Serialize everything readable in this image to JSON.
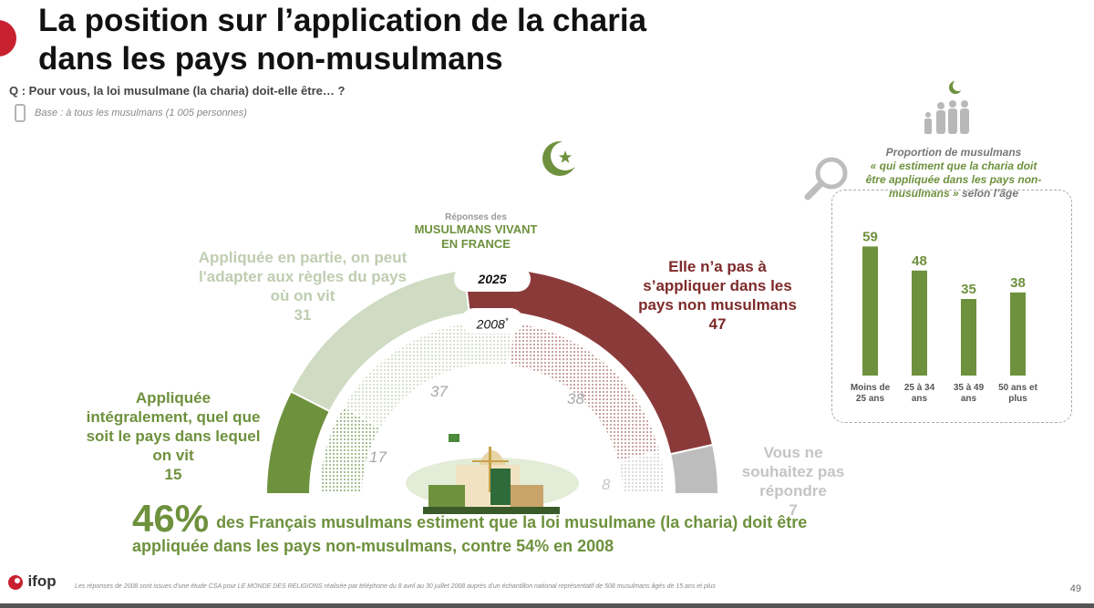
{
  "title_line1": "La position sur l’application de la charia",
  "title_line2": "dans les pays non-musulmans",
  "question": "Q : Pour vous, la loi musulmane (la charia) doit-elle être… ?",
  "base": "Base : à tous les musulmans (1 005 personnes)",
  "center": {
    "subtitle": "Réponses des",
    "title_line1": "MUSULMANS VIVANT",
    "title_line2": "EN FRANCE",
    "year_2025": "2025",
    "year_2008": "2008",
    "year_2008_mark": "*"
  },
  "labels": {
    "integral": [
      "Appliquée",
      "intégralement, quel que",
      "soit le pays dans lequel",
      "on vit"
    ],
    "partial": [
      "Appliquée en partie, on peut",
      "l'adapter aux règles du pays",
      "où on vit"
    ],
    "not_apply": [
      "Elle n’a pas à",
      "s’appliquer dans les",
      "pays non musulmans"
    ],
    "no_answer": [
      "Vous ne",
      "souhaitez pas",
      "répondre"
    ]
  },
  "headline": {
    "big": "46%",
    "text1": "des Français musulmans estiment que la loi musulmane (la charia) doit être",
    "text2": "appliquée dans les pays non-musulmans, contre 54% en 2008"
  },
  "footnote": "Les réponses de 2008 sont issues d’une étude CSA pour LE MONDE DES RELIGIONS réalisée par téléphone du 8 avril au 30 juillet 2008 auprès d’un échantillon national représentatif de 508 musulmans âgés de 15 ans et plus",
  "page_number": "49",
  "logo": "ifop",
  "inset": {
    "title_line1": "Proportion de musulmans",
    "title_em1": "« qui estiment que la charia doit",
    "title_em2": "être appliquée dans les pays non-",
    "title_em3": "musulmans »",
    "title_tail": " selon l’âge"
  },
  "colors": {
    "green": "#6e913d",
    "light_green": "#cfdbc2",
    "dark_red": "#8b3a3a",
    "grey": "#bdbdbd"
  },
  "chart_data": [
    {
      "type": "pie",
      "subtype": "semi-donut",
      "title": "Réponses des MUSULMANS VIVANT EN FRANCE",
      "categories": [
        "Appliquée intégralement, quel que soit le pays dans lequel on vit",
        "Appliquée en partie, on peut l'adapter aux règles du pays où on vit",
        "Elle n’a pas à s’appliquer dans les pays non musulmans",
        "Vous ne souhaitez pas répondre"
      ],
      "series": [
        {
          "name": "2025",
          "values": [
            15,
            31,
            47,
            7
          ]
        },
        {
          "name": "2008",
          "values": [
            17,
            37,
            38,
            8
          ]
        }
      ],
      "value_labels_2025": [
        "15",
        "31",
        "47",
        "7"
      ],
      "value_labels_2008": [
        "17",
        "37",
        "38",
        "8"
      ]
    },
    {
      "type": "bar",
      "title": "Proportion de musulmans « qui estiment que la charia doit être appliquée dans les pays non-musulmans » selon l’âge",
      "categories": [
        [
          "Moins de",
          "25 ans"
        ],
        [
          "25 à 34",
          "ans"
        ],
        [
          "35 à 49",
          "ans"
        ],
        [
          "50 ans et",
          "plus"
        ]
      ],
      "values": [
        59,
        48,
        35,
        38
      ],
      "value_labels": [
        "59",
        "48",
        "35",
        "38"
      ],
      "ylim": [
        0,
        70
      ]
    }
  ]
}
